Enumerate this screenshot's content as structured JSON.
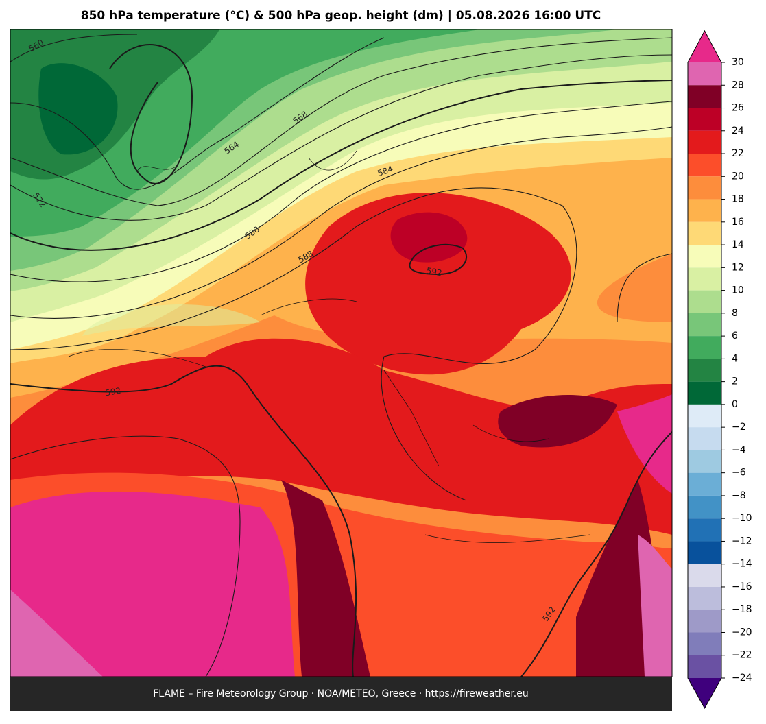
{
  "title": "850 hPa temperature (°C) & 500 hPa geop. height (dm)  |  05.08.2026 16:00 UTC",
  "colorbar": {
    "ticks": [
      30,
      28,
      26,
      24,
      22,
      20,
      18,
      16,
      14,
      12,
      10,
      8,
      6,
      4,
      2,
      0,
      {
        "value": -2,
        "label": "−2"
      },
      {
        "value": -4,
        "label": "−4"
      },
      {
        "value": -6,
        "label": "−6"
      },
      {
        "value": -8,
        "label": "−8"
      },
      {
        "value": -10,
        "label": "−10"
      },
      {
        "value": -12,
        "label": "−12"
      },
      {
        "value": -14,
        "label": "−14"
      },
      {
        "value": -16,
        "label": "−16"
      },
      {
        "value": -18,
        "label": "−18"
      },
      {
        "value": -20,
        "label": "−20"
      },
      {
        "value": -22,
        "label": "−22"
      },
      {
        "value": -24,
        "label": "−24"
      }
    ],
    "colors": [
      "#df65b0",
      "#800026",
      "#bd0026",
      "#e31a1c",
      "#fc4e2a",
      "#fd8d3c",
      "#feb24c",
      "#fed976",
      "#f7fcb9",
      "#d9f0a3",
      "#addd8e",
      "#78c679",
      "#41ab5d",
      "#238443",
      "#006837",
      "#deebf7",
      "#c6dbef",
      "#9ecae1",
      "#6baed6",
      "#4292c6",
      "#2171b5",
      "#08519c",
      "#dadaeb",
      "#bcbddc",
      "#9e9ac8",
      "#807dba",
      "#6a51a3",
      "#54278f"
    ],
    "extend_max_color": "#e7298a",
    "extend_min_color": "#3f007d"
  },
  "contour_labels": [
    "560",
    "564",
    "568",
    "572",
    "580",
    "584",
    "588",
    "592",
    "592",
    "592"
  ],
  "footer": "FLAME – Fire Meteorology Group · NOA/METEO, Greece · https://fireweather.eu"
}
